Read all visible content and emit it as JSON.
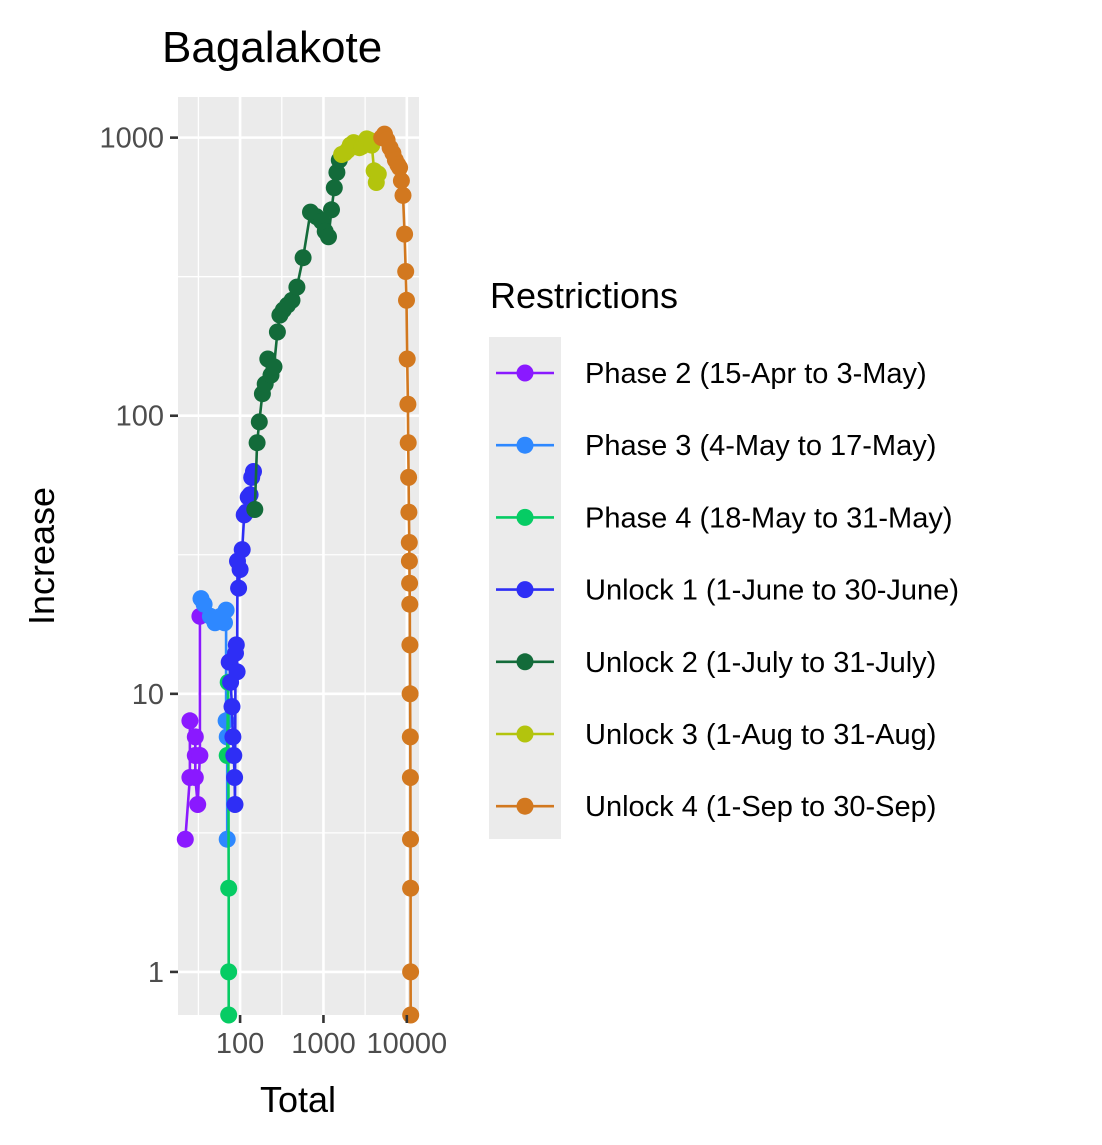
{
  "chart_data": {
    "type": "line",
    "title": "Bagalakote",
    "xlabel": "Total",
    "ylabel": "Increase",
    "x_scale": "log10",
    "y_scale": "log10",
    "xlim": [
      18,
      14000
    ],
    "ylim": [
      0.7,
      1400
    ],
    "x_ticks": [
      100,
      1000,
      10000
    ],
    "x_tick_labels": [
      "100",
      "1000",
      "10000"
    ],
    "y_ticks": [
      1,
      10,
      100,
      1000
    ],
    "y_tick_labels": [
      "1",
      "10",
      "100",
      "1000"
    ],
    "grid": true,
    "legend": {
      "title": "Restrictions",
      "position": "right"
    },
    "series": [
      {
        "name": "Phase 2 (15-Apr to 3-May)",
        "color": "#8a19ff",
        "points": [
          [
            22,
            3
          ],
          [
            25,
            5
          ],
          [
            25,
            8
          ],
          [
            29,
            7
          ],
          [
            29,
            6
          ],
          [
            29,
            5
          ],
          [
            31,
            4
          ],
          [
            33,
            6
          ],
          [
            33,
            19
          ]
        ]
      },
      {
        "name": "Phase 3 (4-May to 17-May)",
        "color": "#2e88ff",
        "points": [
          [
            34,
            22
          ],
          [
            37,
            21
          ],
          [
            44,
            19
          ],
          [
            50,
            18
          ],
          [
            58,
            19
          ],
          [
            65,
            18
          ],
          [
            68,
            20
          ],
          [
            68,
            8
          ],
          [
            70,
            7
          ],
          [
            70,
            3
          ]
        ]
      },
      {
        "name": "Phase 4 (18-May to 31-May)",
        "color": "#06cc64",
        "points": [
          [
            70,
            6
          ],
          [
            72,
            11
          ],
          [
            73,
            2
          ],
          [
            73,
            1
          ],
          [
            73,
            0.7
          ]
        ]
      },
      {
        "name": "Unlock 1 (1-June to 30-June)",
        "color": "#2e2ef5",
        "points": [
          [
            74,
            13
          ],
          [
            77,
            11
          ],
          [
            80,
            9
          ],
          [
            82,
            7
          ],
          [
            84,
            6
          ],
          [
            86,
            5
          ],
          [
            87,
            4
          ],
          [
            88,
            14
          ],
          [
            90,
            15
          ],
          [
            92,
            12
          ],
          [
            93,
            30
          ],
          [
            96,
            24
          ],
          [
            100,
            28
          ],
          [
            106,
            33
          ],
          [
            112,
            44
          ],
          [
            118,
            45
          ],
          [
            125,
            51
          ],
          [
            132,
            52
          ],
          [
            138,
            60
          ],
          [
            145,
            63
          ]
        ]
      },
      {
        "name": "Unlock 2 (1-July to 31-July)",
        "color": "#136b3a",
        "points": [
          [
            150,
            46
          ],
          [
            160,
            80
          ],
          [
            170,
            95
          ],
          [
            185,
            120
          ],
          [
            200,
            130
          ],
          [
            215,
            160
          ],
          [
            235,
            140
          ],
          [
            255,
            150
          ],
          [
            280,
            200
          ],
          [
            300,
            230
          ],
          [
            330,
            240
          ],
          [
            370,
            250
          ],
          [
            420,
            260
          ],
          [
            480,
            290
          ],
          [
            570,
            370
          ],
          [
            700,
            540
          ],
          [
            820,
            520
          ],
          [
            950,
            500
          ],
          [
            1050,
            460
          ],
          [
            1150,
            440
          ],
          [
            1250,
            550
          ],
          [
            1350,
            660
          ],
          [
            1450,
            750
          ],
          [
            1550,
            830
          ]
        ]
      },
      {
        "name": "Unlock 3 (1-Aug to 31-Aug)",
        "color": "#b3c40d",
        "points": [
          [
            1650,
            870
          ],
          [
            1800,
            880
          ],
          [
            1950,
            900
          ],
          [
            2100,
            940
          ],
          [
            2300,
            960
          ],
          [
            2500,
            950
          ],
          [
            2700,
            920
          ],
          [
            2900,
            930
          ],
          [
            3100,
            960
          ],
          [
            3300,
            990
          ],
          [
            3550,
            980
          ],
          [
            3800,
            940
          ],
          [
            4050,
            760
          ],
          [
            4300,
            690
          ],
          [
            4550,
            740
          ]
        ]
      },
      {
        "name": "Unlock 4 (1-Sep to 30-Sep)",
        "color": "#d2781f",
        "points": [
          [
            5000,
            1000
          ],
          [
            5400,
            1030
          ],
          [
            5800,
            980
          ],
          [
            6300,
            920
          ],
          [
            6800,
            880
          ],
          [
            7300,
            830
          ],
          [
            7800,
            800
          ],
          [
            8200,
            780
          ],
          [
            8600,
            700
          ],
          [
            9000,
            620
          ],
          [
            9400,
            450
          ],
          [
            9700,
            330
          ],
          [
            9900,
            260
          ],
          [
            10100,
            160
          ],
          [
            10300,
            110
          ],
          [
            10400,
            80
          ],
          [
            10500,
            60
          ],
          [
            10600,
            45
          ],
          [
            10700,
            35
          ],
          [
            10750,
            30
          ],
          [
            10800,
            25
          ],
          [
            10850,
            21
          ],
          [
            10900,
            15
          ],
          [
            10950,
            10
          ],
          [
            11000,
            7
          ],
          [
            11050,
            5
          ],
          [
            11080,
            3
          ],
          [
            11100,
            2
          ],
          [
            11110,
            1
          ],
          [
            11120,
            0.7
          ]
        ]
      }
    ]
  }
}
